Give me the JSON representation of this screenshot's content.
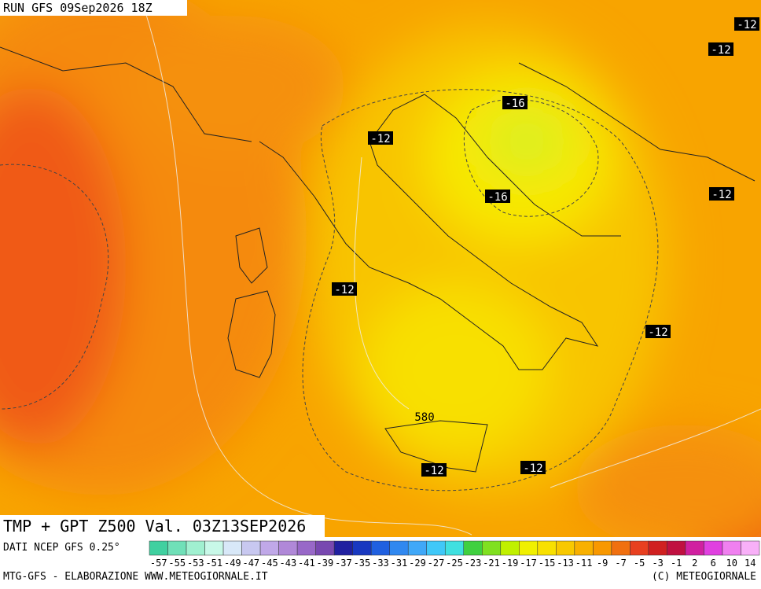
{
  "header": {
    "run": "RUN GFS 09Sep2026 18Z"
  },
  "map": {
    "title": "TMP + GPT Z500 Val. 03Z13SEP2026",
    "contour_labels": [
      -12,
      -12,
      -12,
      -12,
      -12,
      -12,
      -12,
      -12,
      -16,
      -16,
      580
    ]
  },
  "legend": {
    "source": "DATI NCEP GFS 0.25°",
    "labels": [
      -57,
      -55,
      -53,
      -51,
      -49,
      -47,
      -45,
      -43,
      -41,
      -39,
      -37,
      -35,
      -33,
      -31,
      -29,
      -27,
      -25,
      -23,
      -21,
      -19,
      -17,
      -15,
      -13,
      -11,
      -9,
      -7,
      -5,
      -3,
      -1,
      2,
      6,
      10,
      14
    ],
    "colors": [
      "#40d0a0",
      "#70e0b8",
      "#a0f0d0",
      "#c8f8e8",
      "#d8e8f8",
      "#c8c8f0",
      "#c0a8e8",
      "#b088d8",
      "#9868c8",
      "#7848b0",
      "#2020a0",
      "#1838c0",
      "#2060e0",
      "#3088f0",
      "#40a8f8",
      "#40c8f8",
      "#40e0e0",
      "#40d040",
      "#80e020",
      "#c0f000",
      "#f0f000",
      "#f8e000",
      "#f8c800",
      "#f8b000",
      "#f89800",
      "#f07010",
      "#e84020",
      "#d02020",
      "#c01040",
      "#d020a0",
      "#e040e0",
      "#f080f0",
      "#f8b0f8"
    ]
  },
  "footer": {
    "left": "MTG-GFS - ELABORAZIONE WWW.METEOGIORNALE.IT",
    "right": "(C) METEOGIORNALE"
  }
}
